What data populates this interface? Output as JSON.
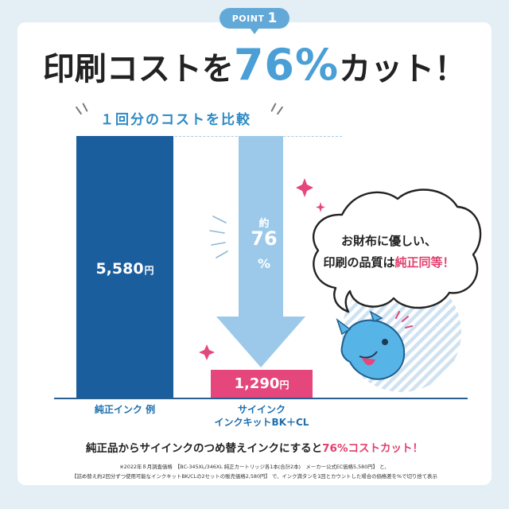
{
  "badge": {
    "word": "POINT",
    "number": "1"
  },
  "headline": {
    "pre": "印刷コストを",
    "percent": "76%",
    "post": "カット！"
  },
  "compare_title": "１回分のコストを比較",
  "chart_data": {
    "type": "bar",
    "title": "１回分のコストを比較",
    "categories": [
      "純正インク 例",
      "サイインク インクキットBK＋CL"
    ],
    "values": [
      5580,
      1290
    ],
    "unit": "円",
    "colors": [
      "#1b5e9e",
      "#e5467c"
    ],
    "ylim": [
      0,
      5580
    ],
    "reduction_label": {
      "pre": "約",
      "value": "76",
      "post": "%"
    }
  },
  "bars": {
    "pure": {
      "value": "5,580",
      "unit": "円",
      "label": "純正インク 例"
    },
    "sai": {
      "value": "1,290",
      "unit": "円",
      "label_line1": "サイインク",
      "label_line2": "インクキットBK＋CL"
    }
  },
  "arrow": {
    "pre": "約",
    "value": "76",
    "post": "%"
  },
  "bubble": {
    "line1": "お財布に優しい、",
    "line2_pre": "印刷の品質は",
    "line2_accent": "純正同等！"
  },
  "bottom": {
    "pre": "純正品からサイインクのつめ替えインクにすると",
    "accent": "76%コストカット！"
  },
  "footnote": {
    "line1": "※2022年８月調査価格　【BC-345XL/346XL 純正カートリッジ各1本(合計2本)　メーカー公式EC価格5,580円】 と、",
    "line2": "【詰め替え約2回分ずつ使用可能なインクキットBK/CLの2セットの販売価格2,580円】 で、インク満タンを1回とカウントした場合の価格差を%で切り捨て表示"
  },
  "colors": {
    "accent_blue": "#4a9fd6",
    "dark_blue": "#1b5e9e",
    "light_blue_arrow": "#9cc9ea",
    "pink": "#e5467c",
    "accent_red": "#e23f6e",
    "frame_bg": "#e4eef5"
  }
}
